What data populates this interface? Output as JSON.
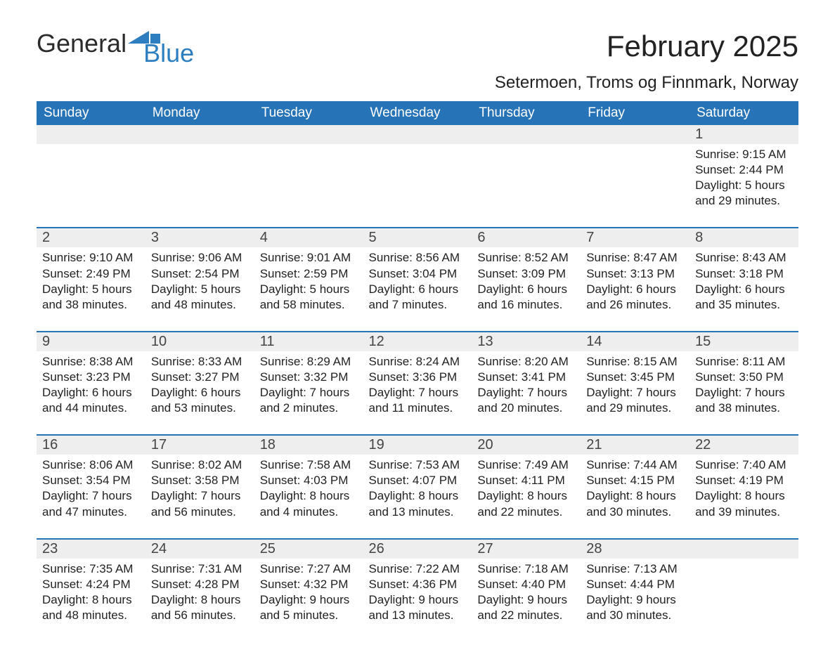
{
  "brand": {
    "word1": "General",
    "word2": "Blue",
    "flag_color": "#2d7ec0"
  },
  "colors": {
    "header_blue": "#2773b8",
    "row_border": "#2773b8",
    "cell_bg": "#eeeeee",
    "bg": "#ffffff",
    "text": "#222222"
  },
  "title": "February 2025",
  "location": "Setermoen, Troms og Finnmark, Norway",
  "weekdays": [
    "Sunday",
    "Monday",
    "Tuesday",
    "Wednesday",
    "Thursday",
    "Friday",
    "Saturday"
  ],
  "labels": {
    "sunrise": "Sunrise:",
    "sunset": "Sunset:",
    "daylight": "Daylight:"
  },
  "weeks": [
    [
      {
        "empty": true
      },
      {
        "empty": true
      },
      {
        "empty": true
      },
      {
        "empty": true
      },
      {
        "empty": true
      },
      {
        "empty": true
      },
      {
        "date": "1",
        "sunrise": "9:15 AM",
        "sunset": "2:44 PM",
        "daylight": "5 hours and 29 minutes."
      }
    ],
    [
      {
        "date": "2",
        "sunrise": "9:10 AM",
        "sunset": "2:49 PM",
        "daylight": "5 hours and 38 minutes."
      },
      {
        "date": "3",
        "sunrise": "9:06 AM",
        "sunset": "2:54 PM",
        "daylight": "5 hours and 48 minutes."
      },
      {
        "date": "4",
        "sunrise": "9:01 AM",
        "sunset": "2:59 PM",
        "daylight": "5 hours and 58 minutes."
      },
      {
        "date": "5",
        "sunrise": "8:56 AM",
        "sunset": "3:04 PM",
        "daylight": "6 hours and 7 minutes."
      },
      {
        "date": "6",
        "sunrise": "8:52 AM",
        "sunset": "3:09 PM",
        "daylight": "6 hours and 16 minutes."
      },
      {
        "date": "7",
        "sunrise": "8:47 AM",
        "sunset": "3:13 PM",
        "daylight": "6 hours and 26 minutes."
      },
      {
        "date": "8",
        "sunrise": "8:43 AM",
        "sunset": "3:18 PM",
        "daylight": "6 hours and 35 minutes."
      }
    ],
    [
      {
        "date": "9",
        "sunrise": "8:38 AM",
        "sunset": "3:23 PM",
        "daylight": "6 hours and 44 minutes."
      },
      {
        "date": "10",
        "sunrise": "8:33 AM",
        "sunset": "3:27 PM",
        "daylight": "6 hours and 53 minutes."
      },
      {
        "date": "11",
        "sunrise": "8:29 AM",
        "sunset": "3:32 PM",
        "daylight": "7 hours and 2 minutes."
      },
      {
        "date": "12",
        "sunrise": "8:24 AM",
        "sunset": "3:36 PM",
        "daylight": "7 hours and 11 minutes."
      },
      {
        "date": "13",
        "sunrise": "8:20 AM",
        "sunset": "3:41 PM",
        "daylight": "7 hours and 20 minutes."
      },
      {
        "date": "14",
        "sunrise": "8:15 AM",
        "sunset": "3:45 PM",
        "daylight": "7 hours and 29 minutes."
      },
      {
        "date": "15",
        "sunrise": "8:11 AM",
        "sunset": "3:50 PM",
        "daylight": "7 hours and 38 minutes."
      }
    ],
    [
      {
        "date": "16",
        "sunrise": "8:06 AM",
        "sunset": "3:54 PM",
        "daylight": "7 hours and 47 minutes."
      },
      {
        "date": "17",
        "sunrise": "8:02 AM",
        "sunset": "3:58 PM",
        "daylight": "7 hours and 56 minutes."
      },
      {
        "date": "18",
        "sunrise": "7:58 AM",
        "sunset": "4:03 PM",
        "daylight": "8 hours and 4 minutes."
      },
      {
        "date": "19",
        "sunrise": "7:53 AM",
        "sunset": "4:07 PM",
        "daylight": "8 hours and 13 minutes."
      },
      {
        "date": "20",
        "sunrise": "7:49 AM",
        "sunset": "4:11 PM",
        "daylight": "8 hours and 22 minutes."
      },
      {
        "date": "21",
        "sunrise": "7:44 AM",
        "sunset": "4:15 PM",
        "daylight": "8 hours and 30 minutes."
      },
      {
        "date": "22",
        "sunrise": "7:40 AM",
        "sunset": "4:19 PM",
        "daylight": "8 hours and 39 minutes."
      }
    ],
    [
      {
        "date": "23",
        "sunrise": "7:35 AM",
        "sunset": "4:24 PM",
        "daylight": "8 hours and 48 minutes."
      },
      {
        "date": "24",
        "sunrise": "7:31 AM",
        "sunset": "4:28 PM",
        "daylight": "8 hours and 56 minutes."
      },
      {
        "date": "25",
        "sunrise": "7:27 AM",
        "sunset": "4:32 PM",
        "daylight": "9 hours and 5 minutes."
      },
      {
        "date": "26",
        "sunrise": "7:22 AM",
        "sunset": "4:36 PM",
        "daylight": "9 hours and 13 minutes."
      },
      {
        "date": "27",
        "sunrise": "7:18 AM",
        "sunset": "4:40 PM",
        "daylight": "9 hours and 22 minutes."
      },
      {
        "date": "28",
        "sunrise": "7:13 AM",
        "sunset": "4:44 PM",
        "daylight": "9 hours and 30 minutes."
      },
      {
        "empty": true
      }
    ]
  ]
}
